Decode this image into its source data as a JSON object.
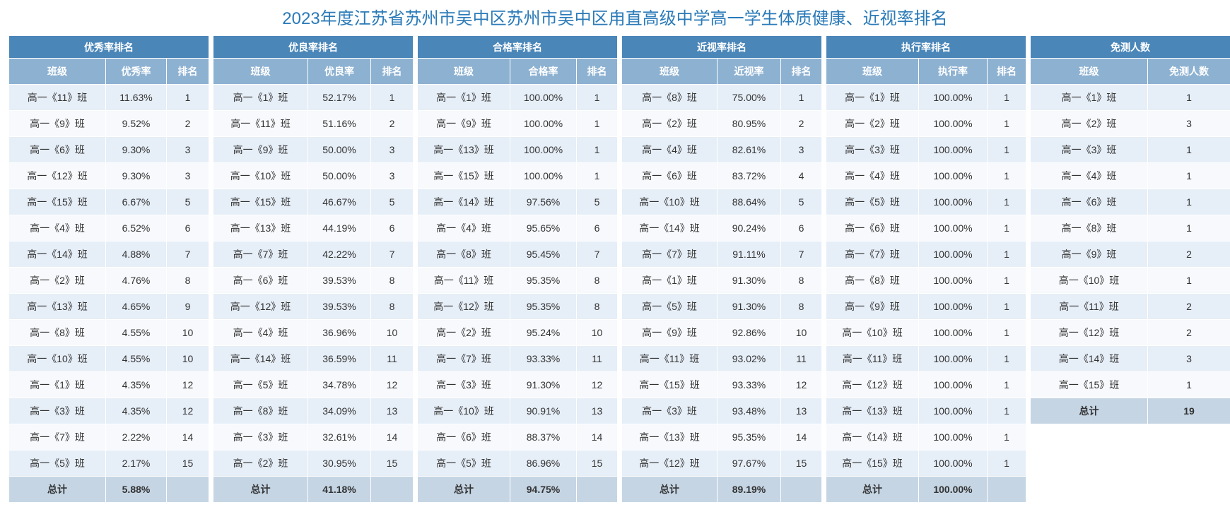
{
  "title": "2023年度江苏省苏州市吴中区苏州市吴中区甪直高级中学高一学生体质健康、近视率排名",
  "tables": [
    {
      "caption": "优秀率排名",
      "headers": [
        "班级",
        "优秀率",
        "排名"
      ],
      "rows": [
        [
          "高一《11》班",
          "11.63%",
          "1"
        ],
        [
          "高一《9》班",
          "9.52%",
          "2"
        ],
        [
          "高一《6》班",
          "9.30%",
          "3"
        ],
        [
          "高一《12》班",
          "9.30%",
          "3"
        ],
        [
          "高一《15》班",
          "6.67%",
          "5"
        ],
        [
          "高一《4》班",
          "6.52%",
          "6"
        ],
        [
          "高一《14》班",
          "4.88%",
          "7"
        ],
        [
          "高一《2》班",
          "4.76%",
          "8"
        ],
        [
          "高一《13》班",
          "4.65%",
          "9"
        ],
        [
          "高一《8》班",
          "4.55%",
          "10"
        ],
        [
          "高一《10》班",
          "4.55%",
          "10"
        ],
        [
          "高一《1》班",
          "4.35%",
          "12"
        ],
        [
          "高一《3》班",
          "4.35%",
          "12"
        ],
        [
          "高一《7》班",
          "2.22%",
          "14"
        ],
        [
          "高一《5》班",
          "2.17%",
          "15"
        ]
      ],
      "total": [
        "总计",
        "5.88%",
        ""
      ]
    },
    {
      "caption": "优良率排名",
      "headers": [
        "班级",
        "优良率",
        "排名"
      ],
      "rows": [
        [
          "高一《1》班",
          "52.17%",
          "1"
        ],
        [
          "高一《11》班",
          "51.16%",
          "2"
        ],
        [
          "高一《9》班",
          "50.00%",
          "3"
        ],
        [
          "高一《10》班",
          "50.00%",
          "3"
        ],
        [
          "高一《15》班",
          "46.67%",
          "5"
        ],
        [
          "高一《13》班",
          "44.19%",
          "6"
        ],
        [
          "高一《7》班",
          "42.22%",
          "7"
        ],
        [
          "高一《6》班",
          "39.53%",
          "8"
        ],
        [
          "高一《12》班",
          "39.53%",
          "8"
        ],
        [
          "高一《4》班",
          "36.96%",
          "10"
        ],
        [
          "高一《14》班",
          "36.59%",
          "11"
        ],
        [
          "高一《5》班",
          "34.78%",
          "12"
        ],
        [
          "高一《8》班",
          "34.09%",
          "13"
        ],
        [
          "高一《3》班",
          "32.61%",
          "14"
        ],
        [
          "高一《2》班",
          "30.95%",
          "15"
        ]
      ],
      "total": [
        "总计",
        "41.18%",
        ""
      ]
    },
    {
      "caption": "合格率排名",
      "headers": [
        "班级",
        "合格率",
        "排名"
      ],
      "rows": [
        [
          "高一《1》班",
          "100.00%",
          "1"
        ],
        [
          "高一《9》班",
          "100.00%",
          "1"
        ],
        [
          "高一《13》班",
          "100.00%",
          "1"
        ],
        [
          "高一《15》班",
          "100.00%",
          "1"
        ],
        [
          "高一《14》班",
          "97.56%",
          "5"
        ],
        [
          "高一《4》班",
          "95.65%",
          "6"
        ],
        [
          "高一《8》班",
          "95.45%",
          "7"
        ],
        [
          "高一《11》班",
          "95.35%",
          "8"
        ],
        [
          "高一《12》班",
          "95.35%",
          "8"
        ],
        [
          "高一《2》班",
          "95.24%",
          "10"
        ],
        [
          "高一《7》班",
          "93.33%",
          "11"
        ],
        [
          "高一《3》班",
          "91.30%",
          "12"
        ],
        [
          "高一《10》班",
          "90.91%",
          "13"
        ],
        [
          "高一《6》班",
          "88.37%",
          "14"
        ],
        [
          "高一《5》班",
          "86.96%",
          "15"
        ]
      ],
      "total": [
        "总计",
        "94.75%",
        ""
      ]
    },
    {
      "caption": "近视率排名",
      "headers": [
        "班级",
        "近视率",
        "排名"
      ],
      "rows": [
        [
          "高一《8》班",
          "75.00%",
          "1"
        ],
        [
          "高一《2》班",
          "80.95%",
          "2"
        ],
        [
          "高一《4》班",
          "82.61%",
          "3"
        ],
        [
          "高一《6》班",
          "83.72%",
          "4"
        ],
        [
          "高一《10》班",
          "88.64%",
          "5"
        ],
        [
          "高一《14》班",
          "90.24%",
          "6"
        ],
        [
          "高一《7》班",
          "91.11%",
          "7"
        ],
        [
          "高一《1》班",
          "91.30%",
          "8"
        ],
        [
          "高一《5》班",
          "91.30%",
          "8"
        ],
        [
          "高一《9》班",
          "92.86%",
          "10"
        ],
        [
          "高一《11》班",
          "93.02%",
          "11"
        ],
        [
          "高一《15》班",
          "93.33%",
          "12"
        ],
        [
          "高一《3》班",
          "93.48%",
          "13"
        ],
        [
          "高一《13》班",
          "95.35%",
          "14"
        ],
        [
          "高一《12》班",
          "97.67%",
          "15"
        ]
      ],
      "total": [
        "总计",
        "89.19%",
        ""
      ]
    },
    {
      "caption": "执行率排名",
      "headers": [
        "班级",
        "执行率",
        "排名"
      ],
      "rows": [
        [
          "高一《1》班",
          "100.00%",
          "1"
        ],
        [
          "高一《2》班",
          "100.00%",
          "1"
        ],
        [
          "高一《3》班",
          "100.00%",
          "1"
        ],
        [
          "高一《4》班",
          "100.00%",
          "1"
        ],
        [
          "高一《5》班",
          "100.00%",
          "1"
        ],
        [
          "高一《6》班",
          "100.00%",
          "1"
        ],
        [
          "高一《7》班",
          "100.00%",
          "1"
        ],
        [
          "高一《8》班",
          "100.00%",
          "1"
        ],
        [
          "高一《9》班",
          "100.00%",
          "1"
        ],
        [
          "高一《10》班",
          "100.00%",
          "1"
        ],
        [
          "高一《11》班",
          "100.00%",
          "1"
        ],
        [
          "高一《12》班",
          "100.00%",
          "1"
        ],
        [
          "高一《13》班",
          "100.00%",
          "1"
        ],
        [
          "高一《14》班",
          "100.00%",
          "1"
        ],
        [
          "高一《15》班",
          "100.00%",
          "1"
        ]
      ],
      "total": [
        "总计",
        "100.00%",
        ""
      ]
    },
    {
      "caption": "免测人数",
      "headers": [
        "班级",
        "免测人数"
      ],
      "rows": [
        [
          "高一《1》班",
          "1"
        ],
        [
          "高一《2》班",
          "3"
        ],
        [
          "高一《3》班",
          "1"
        ],
        [
          "高一《4》班",
          "1"
        ],
        [
          "高一《6》班",
          "1"
        ],
        [
          "高一《8》班",
          "1"
        ],
        [
          "高一《9》班",
          "2"
        ],
        [
          "高一《10》班",
          "1"
        ],
        [
          "高一《11》班",
          "2"
        ],
        [
          "高一《12》班",
          "2"
        ],
        [
          "高一《14》班",
          "3"
        ],
        [
          "高一《15》班",
          "1"
        ]
      ],
      "total": [
        "总计",
        "19"
      ]
    }
  ]
}
